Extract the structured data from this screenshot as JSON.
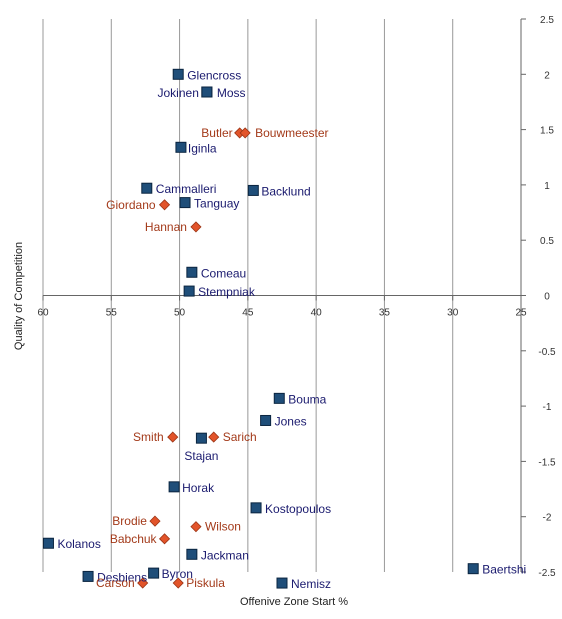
{
  "chart_data": {
    "type": "scatter",
    "title": "",
    "xlabel": "Offenive Zone Start %",
    "ylabel": "Quality of Competition",
    "xlim": [
      60,
      25
    ],
    "ylim": [
      -2.5,
      2.5
    ],
    "x_reversed": true,
    "x_ticks": [
      60,
      55,
      50,
      45,
      40,
      35,
      30,
      25
    ],
    "y_ticks": [
      2.5,
      2,
      1.5,
      1,
      0.5,
      0,
      -0.5,
      -1,
      -1.5,
      -2,
      -2.5
    ],
    "x_tick_labels": [
      "60",
      "55",
      "50",
      "45",
      "40",
      "35",
      "30",
      "25"
    ],
    "y_tick_labels": [
      "2.5",
      "2",
      "1.5",
      "1",
      "0.5",
      "0",
      "-0.5",
      "-1",
      "-1.5",
      "-2",
      "-2.5"
    ],
    "grid": {
      "vertical": true,
      "horizontal": false
    },
    "legend": "none",
    "colors": {
      "forward": "#1f4e79",
      "defense": "#e2542a",
      "forward_label": "#1a1a6e",
      "defense_label": "#a33a1a",
      "grid": "#999999"
    },
    "series": [
      {
        "marker": "square",
        "points": [
          {
            "label": "Glencross",
            "x": 50.1,
            "y": 2.0
          },
          {
            "label": "Jokinen",
            "x": 48.0,
            "y": 1.84
          },
          {
            "label": "Moss",
            "x": 48.0,
            "y": 1.84
          },
          {
            "label": "Iginla",
            "x": 49.9,
            "y": 1.34
          },
          {
            "label": "Cammalleri",
            "x": 52.4,
            "y": 0.97
          },
          {
            "label": "Backlund",
            "x": 44.6,
            "y": 0.95
          },
          {
            "label": "Tanguay",
            "x": 49.6,
            "y": 0.84
          },
          {
            "label": "Comeau",
            "x": 49.1,
            "y": 0.21
          },
          {
            "label": "Stempniak",
            "x": 49.3,
            "y": 0.04
          },
          {
            "label": "Bouma",
            "x": 42.7,
            "y": -0.93
          },
          {
            "label": "Jones",
            "x": 43.7,
            "y": -1.13
          },
          {
            "label": "Stajan",
            "x": 48.4,
            "y": -1.29
          },
          {
            "label": "Horak",
            "x": 50.4,
            "y": -1.73
          },
          {
            "label": "Kostopoulos",
            "x": 44.4,
            "y": -1.92
          },
          {
            "label": "Kolanos",
            "x": 59.6,
            "y": -2.24
          },
          {
            "label": "Jackman",
            "x": 49.1,
            "y": -2.34
          },
          {
            "label": "Baertshi",
            "x": 28.5,
            "y": -2.47
          },
          {
            "label": "Byron",
            "x": 51.9,
            "y": -2.51
          },
          {
            "label": "Desbiens",
            "x": 56.7,
            "y": -2.54
          },
          {
            "label": "Nemisz",
            "x": 42.5,
            "y": -2.6
          }
        ]
      },
      {
        "marker": "diamond",
        "points": [
          {
            "label": "Butler",
            "x": 45.6,
            "y": 1.47
          },
          {
            "label": "Bouwmeester",
            "x": 45.2,
            "y": 1.47
          },
          {
            "label": "Giordano",
            "x": 51.1,
            "y": 0.82
          },
          {
            "label": "Hannan",
            "x": 48.8,
            "y": 0.62
          },
          {
            "label": "Smith",
            "x": 50.5,
            "y": -1.28
          },
          {
            "label": "Sarich",
            "x": 47.5,
            "y": -1.28
          },
          {
            "label": "Brodie",
            "x": 51.8,
            "y": -2.04
          },
          {
            "label": "Wilson",
            "x": 48.8,
            "y": -2.09
          },
          {
            "label": "Babchuk",
            "x": 51.1,
            "y": -2.2
          },
          {
            "label": "Piskula",
            "x": 50.1,
            "y": -2.6
          },
          {
            "label": "Carson",
            "x": 52.7,
            "y": -2.6
          }
        ]
      }
    ]
  }
}
